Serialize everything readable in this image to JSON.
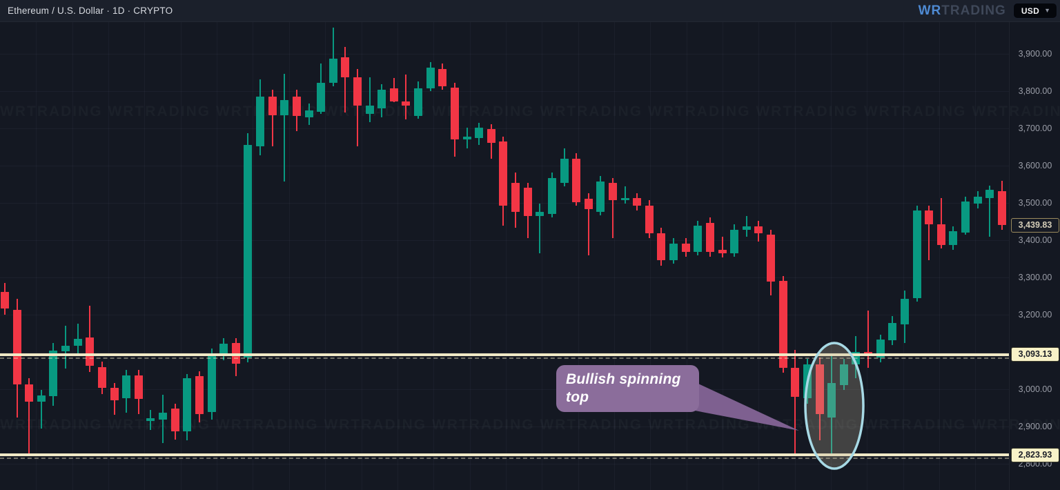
{
  "header": {
    "symbol_title": "Ethereum / U.S. Dollar · 1D · CRYPTO",
    "logo_primary": "WR",
    "logo_secondary": "TRADING",
    "currency_selector": {
      "value": "USD"
    }
  },
  "icons": {
    "chevron_down": "▼"
  },
  "annotation": {
    "text": "Bullish spinning top"
  },
  "colors": {
    "background": "#141822",
    "topbar": "#1b202b",
    "candle_up": "#089981",
    "candle_down": "#f23645",
    "price_line": "#f0e9c6",
    "callout_fill": "#8b6d9b",
    "ellipse_stroke": "#a7d9e5",
    "logo_blue": "#4e8ad3"
  },
  "chart_data": {
    "type": "candlestick",
    "symbol": "Ethereum / U.S. Dollar",
    "interval": "1D",
    "exchange": "CRYPTO",
    "ylim": [
      2760,
      3985
    ],
    "grid": true,
    "legend_position": "none",
    "y_ticks": [
      {
        "value": 3900,
        "label": "3,900.00"
      },
      {
        "value": 3800,
        "label": "3,800.00"
      },
      {
        "value": 3700,
        "label": "3,700.00"
      },
      {
        "value": 3600,
        "label": "3,600.00"
      },
      {
        "value": 3500,
        "label": "3,500.00"
      },
      {
        "value": 3400,
        "label": "3,400.00"
      },
      {
        "value": 3300,
        "label": "3,300.00"
      },
      {
        "value": 3200,
        "label": "3,200.00"
      },
      {
        "value": 3100,
        "label": "3,100.00"
      },
      {
        "value": 3000,
        "label": "3,000.00"
      },
      {
        "value": 2900,
        "label": "2,900.00"
      },
      {
        "value": 2800,
        "label": "2,800.00"
      }
    ],
    "hlines": [
      {
        "value": 3093.13,
        "label": "3,093.13"
      },
      {
        "value": 2823.93,
        "label": "2,823.93"
      }
    ],
    "last_price": {
      "value": 3439.83,
      "label": "3,439.83",
      "direction": "down"
    },
    "circled_candles": [
      67,
      68
    ],
    "circled_pattern": "Bullish spinning top",
    "ohlc": [
      [
        3261,
        3285,
        3200,
        3217
      ],
      [
        3213,
        3243,
        2924,
        3013
      ],
      [
        3013,
        3030,
        2822,
        2967
      ],
      [
        2967,
        2998,
        2894,
        2983
      ],
      [
        2981,
        3124,
        2956,
        3104
      ],
      [
        3102,
        3170,
        3056,
        3117
      ],
      [
        3117,
        3176,
        3096,
        3135
      ],
      [
        3139,
        3224,
        3046,
        3063
      ],
      [
        3059,
        3074,
        2987,
        3004
      ],
      [
        3004,
        3017,
        2932,
        2970
      ],
      [
        2976,
        3052,
        2937,
        3037
      ],
      [
        3037,
        3052,
        2933,
        2974
      ],
      [
        2915,
        2944,
        2891,
        2922
      ],
      [
        2919,
        2985,
        2856,
        2937
      ],
      [
        2948,
        2961,
        2865,
        2887
      ],
      [
        2887,
        3041,
        2863,
        3030
      ],
      [
        3035,
        3048,
        2911,
        2933
      ],
      [
        2939,
        3109,
        2919,
        3094
      ],
      [
        3091,
        3137,
        3078,
        3122
      ],
      [
        3124,
        3137,
        3035,
        3069
      ],
      [
        3085,
        3687,
        3072,
        3656
      ],
      [
        3652,
        3831,
        3628,
        3785
      ],
      [
        3785,
        3804,
        3652,
        3735
      ],
      [
        3735,
        3846,
        3557,
        3776
      ],
      [
        3785,
        3804,
        3693,
        3733
      ],
      [
        3730,
        3767,
        3709,
        3748
      ],
      [
        3744,
        3874,
        3739,
        3822
      ],
      [
        3822,
        3970,
        3813,
        3887
      ],
      [
        3891,
        3919,
        3743,
        3837
      ],
      [
        3837,
        3859,
        3652,
        3761
      ],
      [
        3739,
        3837,
        3717,
        3761
      ],
      [
        3754,
        3819,
        3730,
        3804
      ],
      [
        3807,
        3835,
        3770,
        3772
      ],
      [
        3772,
        3844,
        3724,
        3761
      ],
      [
        3733,
        3826,
        3726,
        3807
      ],
      [
        3807,
        3878,
        3800,
        3863
      ],
      [
        3859,
        3874,
        3804,
        3813
      ],
      [
        3809,
        3822,
        3624,
        3670
      ],
      [
        3670,
        3702,
        3646,
        3678
      ],
      [
        3674,
        3715,
        3656,
        3702
      ],
      [
        3698,
        3711,
        3619,
        3661
      ],
      [
        3665,
        3678,
        3439,
        3493
      ],
      [
        3554,
        3581,
        3433,
        3476
      ],
      [
        3540,
        3554,
        3406,
        3465
      ],
      [
        3465,
        3498,
        3365,
        3476
      ],
      [
        3470,
        3581,
        3461,
        3567
      ],
      [
        3554,
        3646,
        3544,
        3619
      ],
      [
        3619,
        3633,
        3493,
        3502
      ],
      [
        3511,
        3526,
        3359,
        3483
      ],
      [
        3476,
        3572,
        3467,
        3557
      ],
      [
        3554,
        3567,
        3406,
        3507
      ],
      [
        3507,
        3544,
        3498,
        3513
      ],
      [
        3513,
        3526,
        3480,
        3493
      ],
      [
        3493,
        3507,
        3406,
        3419
      ],
      [
        3419,
        3433,
        3331,
        3346
      ],
      [
        3346,
        3406,
        3337,
        3391
      ],
      [
        3391,
        3406,
        3356,
        3369
      ],
      [
        3369,
        3452,
        3359,
        3439
      ],
      [
        3446,
        3461,
        3356,
        3369
      ],
      [
        3374,
        3409,
        3354,
        3365
      ],
      [
        3365,
        3443,
        3356,
        3428
      ],
      [
        3428,
        3465,
        3409,
        3437
      ],
      [
        3437,
        3452,
        3396,
        3419
      ],
      [
        3415,
        3428,
        3252,
        3289
      ],
      [
        3291,
        3304,
        3044,
        3057
      ],
      [
        3057,
        3106,
        2826,
        2980
      ],
      [
        2976,
        3081,
        2961,
        3067
      ],
      [
        3067,
        3085,
        2863,
        2933
      ],
      [
        2924,
        3094,
        2828,
        3017
      ],
      [
        3011,
        3081,
        2998,
        3067
      ],
      [
        3067,
        3143,
        3030,
        3100
      ],
      [
        3100,
        3211,
        3057,
        3094
      ],
      [
        3085,
        3146,
        3072,
        3133
      ],
      [
        3131,
        3196,
        3119,
        3178
      ],
      [
        3174,
        3265,
        3124,
        3243
      ],
      [
        3244,
        3493,
        3235,
        3480
      ],
      [
        3480,
        3493,
        3346,
        3443
      ],
      [
        3443,
        3513,
        3378,
        3387
      ],
      [
        3387,
        3437,
        3374,
        3424
      ],
      [
        3420,
        3517,
        3415,
        3504
      ],
      [
        3498,
        3531,
        3485,
        3517
      ],
      [
        3513,
        3546,
        3409,
        3535
      ],
      [
        3531,
        3559,
        3428,
        3439.83
      ]
    ]
  }
}
